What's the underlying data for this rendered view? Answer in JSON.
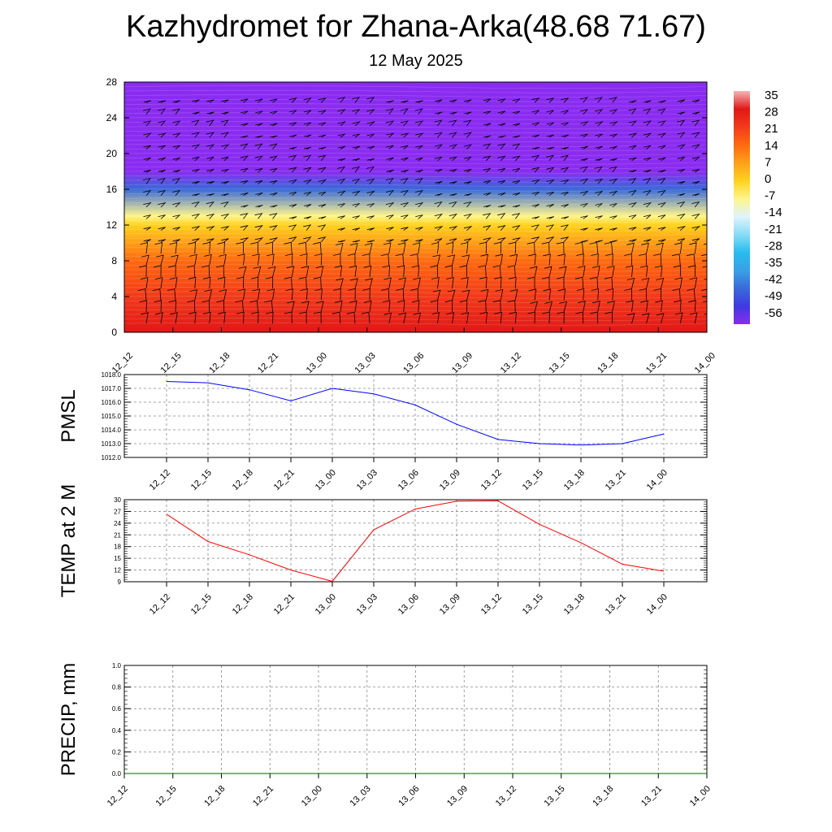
{
  "header": {
    "title": "Kazhydromet for Zhana-Arka(48.68 71.67)",
    "subtitle": "12 May 2025"
  },
  "chart_data": [
    {
      "type": "heatmap",
      "title": "",
      "ylabel": "",
      "ylim": [
        0,
        28
      ],
      "yticks": [
        "0",
        "4",
        "8",
        "12",
        "16",
        "20",
        "24",
        "28"
      ],
      "categories": [
        "12_12",
        "12_15",
        "12_18",
        "12_21",
        "13_00",
        "13_03",
        "13_06",
        "13_09",
        "13_12",
        "13_15",
        "13_18",
        "13_21",
        "14_00"
      ],
      "colorbar": {
        "labels": [
          "35",
          "28",
          "21",
          "14",
          "7",
          "0",
          "-7",
          "-14",
          "-21",
          "-28",
          "-35",
          "-42",
          "-49",
          "-56"
        ],
        "colors": [
          "#f4b6b6",
          "#e01818",
          "#f23a1a",
          "#ff6a10",
          "#ffa01a",
          "#ffd21e",
          "#fff58a",
          "#dff4fc",
          "#8adcf6",
          "#28bcef",
          "#3aa0e6",
          "#3a6ad8",
          "#3f3adf",
          "#8a2cf0"
        ]
      },
      "profile_levels": [
        0,
        4,
        8,
        12,
        13,
        16,
        18,
        20,
        24,
        28
      ],
      "profile_values": [
        26,
        20,
        12,
        1,
        -10,
        -40,
        -56,
        -53,
        -58,
        -60
      ],
      "wind_barbs": true
    },
    {
      "type": "line",
      "ylabel": "PMSL",
      "ylim": [
        1012.0,
        1018.0
      ],
      "yticks": [
        "1012.0",
        "1013.0",
        "1014.0",
        "1015.0",
        "1016.0",
        "1017.0",
        "1018.0"
      ],
      "categories": [
        "12_12",
        "12_15",
        "12_18",
        "12_21",
        "13_00",
        "13_03",
        "13_06",
        "13_09",
        "13_12",
        "13_15",
        "13_18",
        "13_21",
        "14_00"
      ],
      "values": [
        1017.5,
        1017.4,
        1016.9,
        1016.1,
        1017.0,
        1016.6,
        1015.8,
        1014.4,
        1013.3,
        1013.0,
        1012.9,
        1013.0,
        1013.7
      ],
      "color": "#0000ff"
    },
    {
      "type": "line",
      "ylabel": "TEMP at 2 M",
      "ylim": [
        9,
        30
      ],
      "yticks": [
        "9",
        "12",
        "15",
        "18",
        "21",
        "24",
        "27",
        "30"
      ],
      "categories": [
        "12_12",
        "12_15",
        "12_18",
        "12_21",
        "13_00",
        "13_03",
        "13_06",
        "13_09",
        "13_12",
        "13_15",
        "13_18",
        "13_21",
        "14_00"
      ],
      "values": [
        26.3,
        19.3,
        15.9,
        12.0,
        9.1,
        22.3,
        27.6,
        29.6,
        29.7,
        23.7,
        19.0,
        13.5,
        11.7
      ],
      "color": "#ff0000"
    },
    {
      "type": "line",
      "ylabel": "PRECIP, mm",
      "ylim": [
        0.0,
        1.0
      ],
      "yticks": [
        "0.0",
        "0.2",
        "0.4",
        "0.6",
        "0.8",
        "1.0"
      ],
      "categories": [
        "12_12",
        "12_15",
        "12_18",
        "12_21",
        "13_00",
        "13_03",
        "13_06",
        "13_09",
        "13_12",
        "13_15",
        "13_18",
        "13_21",
        "14_00"
      ],
      "values": [
        0,
        0,
        0,
        0,
        0,
        0,
        0,
        0,
        0,
        0,
        0,
        0,
        0
      ],
      "color": "#006400"
    }
  ]
}
